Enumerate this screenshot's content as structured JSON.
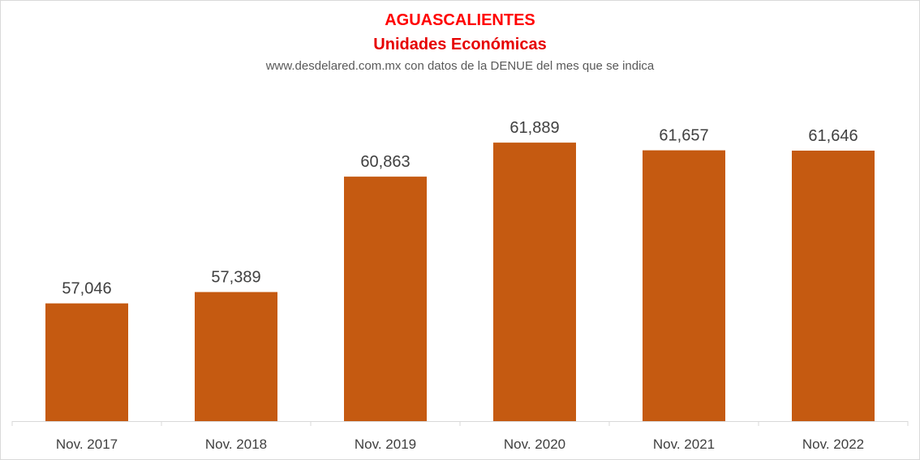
{
  "chart_data": {
    "type": "bar",
    "title": "AGUASCALIENTES",
    "subtitle": "Unidades Económicas",
    "source": "www.desdelared.com.mx con datos de la DENUE del mes que se indica",
    "categories": [
      "Nov. 2017",
      "Nov. 2018",
      "Nov. 2019",
      "Nov. 2020",
      "Nov. 2021",
      "Nov. 2022"
    ],
    "values": [
      57046,
      57389,
      60863,
      61889,
      61657,
      61646
    ],
    "value_labels": [
      "57,046",
      "57,389",
      "60,863",
      "61,889",
      "61,657",
      "61,646"
    ],
    "bar_color": "#c55a11",
    "title_color": "#ff0000",
    "xlabel": "",
    "ylabel": "",
    "ylim": [
      53500,
      62500
    ],
    "grid": false,
    "legend": "none"
  }
}
